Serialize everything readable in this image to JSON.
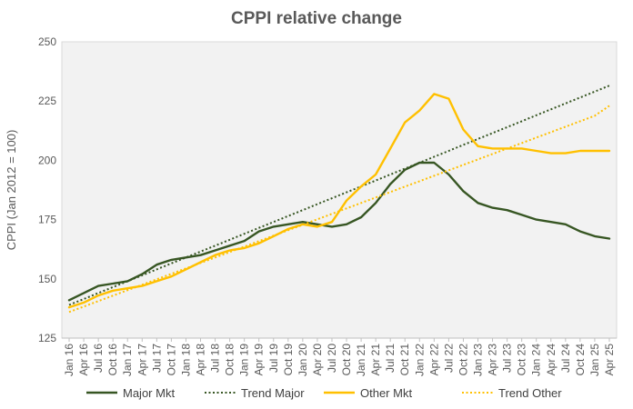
{
  "chart_data": {
    "type": "line",
    "title": "CPPI relative change",
    "xlabel": "",
    "ylabel": "CPPI (Jan 2012 = 100)",
    "ylim": [
      125,
      250
    ],
    "yticks": [
      125,
      150,
      175,
      200,
      225,
      250
    ],
    "grid": false,
    "legend_position": "bottom",
    "plot_background": "#F2F2F2",
    "x": [
      "Jan 16",
      "Apr 16",
      "Jul 16",
      "Oct 16",
      "Jan 17",
      "Apr 17",
      "Jul 17",
      "Oct 17",
      "Jan 18",
      "Apr 18",
      "Jul 18",
      "Oct 18",
      "Jan 19",
      "Apr 19",
      "Jul 19",
      "Oct 19",
      "Jan 20",
      "Apr 20",
      "Jul 20",
      "Oct 20",
      "Jan 21",
      "Apr 21",
      "Jul 21",
      "Oct 21",
      "Jan 22",
      "Apr 22",
      "Jul 22",
      "Oct 22",
      "Jan 23",
      "Apr 23",
      "Jul 23",
      "Oct 23",
      "Jan 24",
      "Apr 24",
      "Jul 24",
      "Oct 24",
      "Jan 25",
      "Apr 25"
    ],
    "series": [
      {
        "name": "Major Mkt",
        "color": "#375623",
        "style": "solid",
        "values": [
          141,
          144,
          147,
          148,
          149,
          152,
          156,
          158,
          159,
          160,
          162,
          164,
          166,
          170,
          172,
          173,
          174,
          173,
          172,
          173,
          176,
          182,
          190,
          196,
          199,
          199,
          194,
          187,
          182,
          180,
          179,
          177,
          175,
          174,
          173,
          170,
          168,
          167
        ]
      },
      {
        "name": "Trend Major",
        "color": "#375623",
        "style": "dotted",
        "values": [
          139,
          141.5,
          144,
          146.5,
          149,
          151.5,
          154,
          156.5,
          159,
          161.5,
          164,
          166.5,
          169,
          171.5,
          174,
          176.5,
          179,
          181.5,
          184,
          186.5,
          189,
          191.5,
          194,
          196.5,
          199,
          201.5,
          204,
          206.5,
          209,
          211.5,
          214,
          216.5,
          219,
          221.5,
          224,
          226.5,
          229,
          231.5
        ]
      },
      {
        "name": "Other Mkt",
        "color": "#FFC000",
        "style": "solid",
        "values": [
          138,
          140,
          143,
          145,
          146,
          147,
          149,
          151,
          154,
          157,
          160,
          162,
          163,
          165,
          168,
          171,
          173,
          172,
          174,
          183,
          189,
          194,
          205,
          216,
          221,
          228,
          226,
          213,
          206,
          205,
          205,
          205,
          204,
          203,
          203,
          204,
          204,
          204
        ]
      },
      {
        "name": "Trend Other",
        "color": "#FFC000",
        "style": "dotted",
        "values": [
          136,
          138.3,
          140.6,
          142.9,
          145.2,
          147.5,
          149.8,
          152.1,
          154.4,
          156.7,
          159,
          161.3,
          163.6,
          165.9,
          168.2,
          170.5,
          172.8,
          175.1,
          177.4,
          179.7,
          182,
          184.3,
          186.6,
          188.9,
          191.2,
          193.5,
          195.8,
          198.1,
          200.4,
          202.7,
          205,
          207.3,
          209.6,
          211.9,
          214.2,
          216.5,
          218.8,
          223
        ]
      }
    ]
  }
}
